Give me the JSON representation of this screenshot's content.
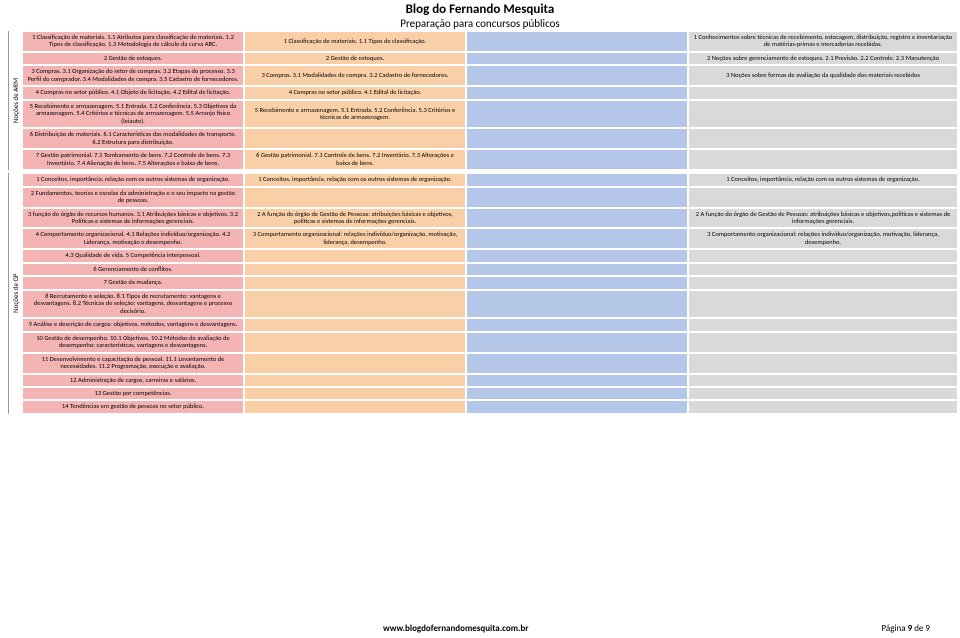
{
  "header": {
    "title": "Blog do Fernando Mesquita",
    "subtitle": "Preparação para concursos públicos"
  },
  "footer": {
    "site": "www.blogdofernandomesquita.com.br",
    "page_label": "Página ",
    "page_num": "9",
    "page_of": " de 9"
  },
  "sections": [
    {
      "label": "Noções de ARM",
      "rows": [
        [
          {
            "text": "1 Classificação de materiais. 1.1 Atributos para classificação de materiais. 1.2 Tipos de classificação. 1.3 Metodologia de cálculo da curva ABC.",
            "cls": "red"
          },
          {
            "text": "1 Classificação de materiais. 1.1 Tipos de classificação.",
            "cls": "orange"
          },
          {
            "text": "",
            "cls": "blue"
          },
          {
            "text": "1 Conhecimentos sobre técnicas de recebimento, estocagem, distribuição, registro e inventariação de matérias-primas e mercadorias recebidas.",
            "cls": "gray"
          }
        ],
        [
          {
            "text": "2 Gestão de estoques.",
            "cls": "red"
          },
          {
            "text": "2 Gestão de estoques.",
            "cls": "orange"
          },
          {
            "text": "",
            "cls": "blue"
          },
          {
            "text": "2 Noções sobre gerenciamento de estoques. 2.1 Previsão. 2.2 Controle. 2.3 Manutenção",
            "cls": "gray"
          }
        ],
        [
          {
            "text": "3 Compras. 3.1 Organização do setor de compras. 3.2 Etapas do processo. 3.3 Perfil do comprador. 3.4 Modalidades de compra. 3.5 Cadastro de fornecedores.",
            "cls": "red"
          },
          {
            "text": "3 Compras. 3.1 Modalidades de compra. 3.2 Cadastro de fornecedores.",
            "cls": "orange"
          },
          {
            "text": "",
            "cls": "blue"
          },
          {
            "text": "3 Noções sobre formas de avaliação da qualidade dos materiais recebidos",
            "cls": "gray"
          }
        ],
        [
          {
            "text": "4 Compras no setor público. 4.1 Objeto de licitação. 4.2 Edital de licitação.",
            "cls": "red"
          },
          {
            "text": "4 Compras no setor público. 4.1 Edital de licitação.",
            "cls": "orange"
          },
          {
            "text": "",
            "cls": "blue"
          },
          {
            "text": "",
            "cls": "gray"
          }
        ],
        [
          {
            "text": "5 Recebimento e armazenagem. 5.1 Entrada. 5.2 Conferência. 5.3 Objetivos da armazenagem. 5.4 Critérios e técnicas de armazenagem. 5.5 Arranjo físico (leiaute).",
            "cls": "red"
          },
          {
            "text": "5 Recebimento e armazenagem. 5.1 Entrada. 5.2 Conferência. 5.3 Critérios e técnicas de armazenagem.",
            "cls": "orange"
          },
          {
            "text": "",
            "cls": "blue"
          },
          {
            "text": "",
            "cls": "gray"
          }
        ],
        [
          {
            "text": "6 Distribuição de materiais. 6.1 Características das modalidades de transporte. 6.2 Estrutura para distribuição.",
            "cls": "red"
          },
          {
            "text": "",
            "cls": "orange"
          },
          {
            "text": "",
            "cls": "blue"
          },
          {
            "text": "",
            "cls": "gray"
          }
        ],
        [
          {
            "text": "7 Gestão patrimonial. 7.1 Tombamento de bens. 7.2 Controle de bens. 7.3 Inventário. 7.4 Alienação de bens. 7.5 Alterações e baixa de bens.",
            "cls": "red"
          },
          {
            "text": "6 Gestão patrimonial. 7.1 Controle de bens. 7.2 Inventário. 7.3 Alterações e baixa de bens.",
            "cls": "orange"
          },
          {
            "text": "",
            "cls": "blue"
          },
          {
            "text": "",
            "cls": "gray"
          }
        ]
      ]
    },
    {
      "label": "Noções de GP",
      "rows": [
        [
          {
            "text": "1 Conceitos, importância, relação com os outros sistemas de organização.",
            "cls": "red"
          },
          {
            "text": "1 Conceitos, importância, relação com os outros sistemas de organização.",
            "cls": "orange"
          },
          {
            "text": "",
            "cls": "blue"
          },
          {
            "text": "1 Conceitos, importância, relação com os outros sistemas de organização.",
            "cls": "gray"
          }
        ],
        [
          {
            "text": "2 Fundamentos, teorias e escolas da administração e o seu impacto na gestão de pessoas.",
            "cls": "red"
          },
          {
            "text": "",
            "cls": "orange"
          },
          {
            "text": "",
            "cls": "blue"
          },
          {
            "text": "",
            "cls": "gray"
          }
        ],
        [
          {
            "text": "3 função do órgão de recursos humanos. 3.1 Atribuições básicas e objetivos. 3.2 Políticas e sistemas de informações gerenciais.",
            "cls": "red"
          },
          {
            "text": "2 A função do órgão de Gestão de Pessoas: atribuições básicas e objetivos, políticas e sistemas de informações gerenciais.",
            "cls": "orange"
          },
          {
            "text": "",
            "cls": "blue"
          },
          {
            "text": "2 A função do órgão de Gestão de Pessoas: atribuições básicas e objetivos,políticas e sistemas de informações gerenciais.",
            "cls": "gray"
          }
        ],
        [
          {
            "text": "4 Comportamento organizacional. 4.1 Relações indivíduo/organização. 4.2 Liderança, motivação e desempenho.",
            "cls": "red"
          },
          {
            "text": "3 Comportamento organizacional: relações indivíduo/organização, motivação, liderança, desempenho.",
            "cls": "orange"
          },
          {
            "text": "",
            "cls": "blue"
          },
          {
            "text": "3 Comportamento organizacional: relações indivíduo/organização, motivação, liderança, desempenho.",
            "cls": "gray"
          }
        ],
        [
          {
            "text": "4.3 Qualidade de vida. 5 Competência interpessoal.",
            "cls": "red"
          },
          {
            "text": "",
            "cls": "orange"
          },
          {
            "text": "",
            "cls": "blue"
          },
          {
            "text": "",
            "cls": "gray"
          }
        ],
        [
          {
            "text": "6 Gerenciamento de conflitos.",
            "cls": "red"
          },
          {
            "text": "",
            "cls": "orange"
          },
          {
            "text": "",
            "cls": "blue"
          },
          {
            "text": "",
            "cls": "gray"
          }
        ],
        [
          {
            "text": "7 Gestão da mudança.",
            "cls": "red"
          },
          {
            "text": "",
            "cls": "orange"
          },
          {
            "text": "",
            "cls": "blue"
          },
          {
            "text": "",
            "cls": "gray"
          }
        ],
        [
          {
            "text": "8 Recrutamento e seleção. 8.1 Tipos de recrutamento: vantagens e desvantagens. 8.2 Técnicas de seleção: vantagens, desvantagens e processo decisório.",
            "cls": "red"
          },
          {
            "text": "",
            "cls": "orange"
          },
          {
            "text": "",
            "cls": "blue"
          },
          {
            "text": "",
            "cls": "gray"
          }
        ],
        [
          {
            "text": "9 Análise e descrição de cargos: objetivos, métodos, vantagens e desvantagens.",
            "cls": "red"
          },
          {
            "text": "",
            "cls": "orange"
          },
          {
            "text": "",
            "cls": "blue"
          },
          {
            "text": "",
            "cls": "gray"
          }
        ],
        [
          {
            "text": "10 Gestão de desempenho. 10.1 Objetivos. 10.2 Métodos de avaliação de desempenho: características, vantagens e desvantagens.",
            "cls": "red"
          },
          {
            "text": "",
            "cls": "orange"
          },
          {
            "text": "",
            "cls": "blue"
          },
          {
            "text": "",
            "cls": "gray"
          }
        ],
        [
          {
            "text": "11 Desenvolvimento e capacitação de pessoal. 11.1 Levantamento de necessidades. 11.2 Programação, execução e avaliação.",
            "cls": "red"
          },
          {
            "text": "",
            "cls": "orange"
          },
          {
            "text": "",
            "cls": "blue"
          },
          {
            "text": "",
            "cls": "gray"
          }
        ],
        [
          {
            "text": "12 Administração de cargos, carreiras e salários.",
            "cls": "red"
          },
          {
            "text": "",
            "cls": "orange"
          },
          {
            "text": "",
            "cls": "blue"
          },
          {
            "text": "",
            "cls": "gray"
          }
        ],
        [
          {
            "text": "13 Gestão por competências.",
            "cls": "red"
          },
          {
            "text": "",
            "cls": "orange"
          },
          {
            "text": "",
            "cls": "blue"
          },
          {
            "text": "",
            "cls": "gray"
          }
        ],
        [
          {
            "text": "14 Tendências em gestão de pessoas no setor público.",
            "cls": "red"
          },
          {
            "text": "",
            "cls": "orange"
          },
          {
            "text": "",
            "cls": "blue"
          },
          {
            "text": "",
            "cls": "gray"
          }
        ]
      ]
    }
  ]
}
